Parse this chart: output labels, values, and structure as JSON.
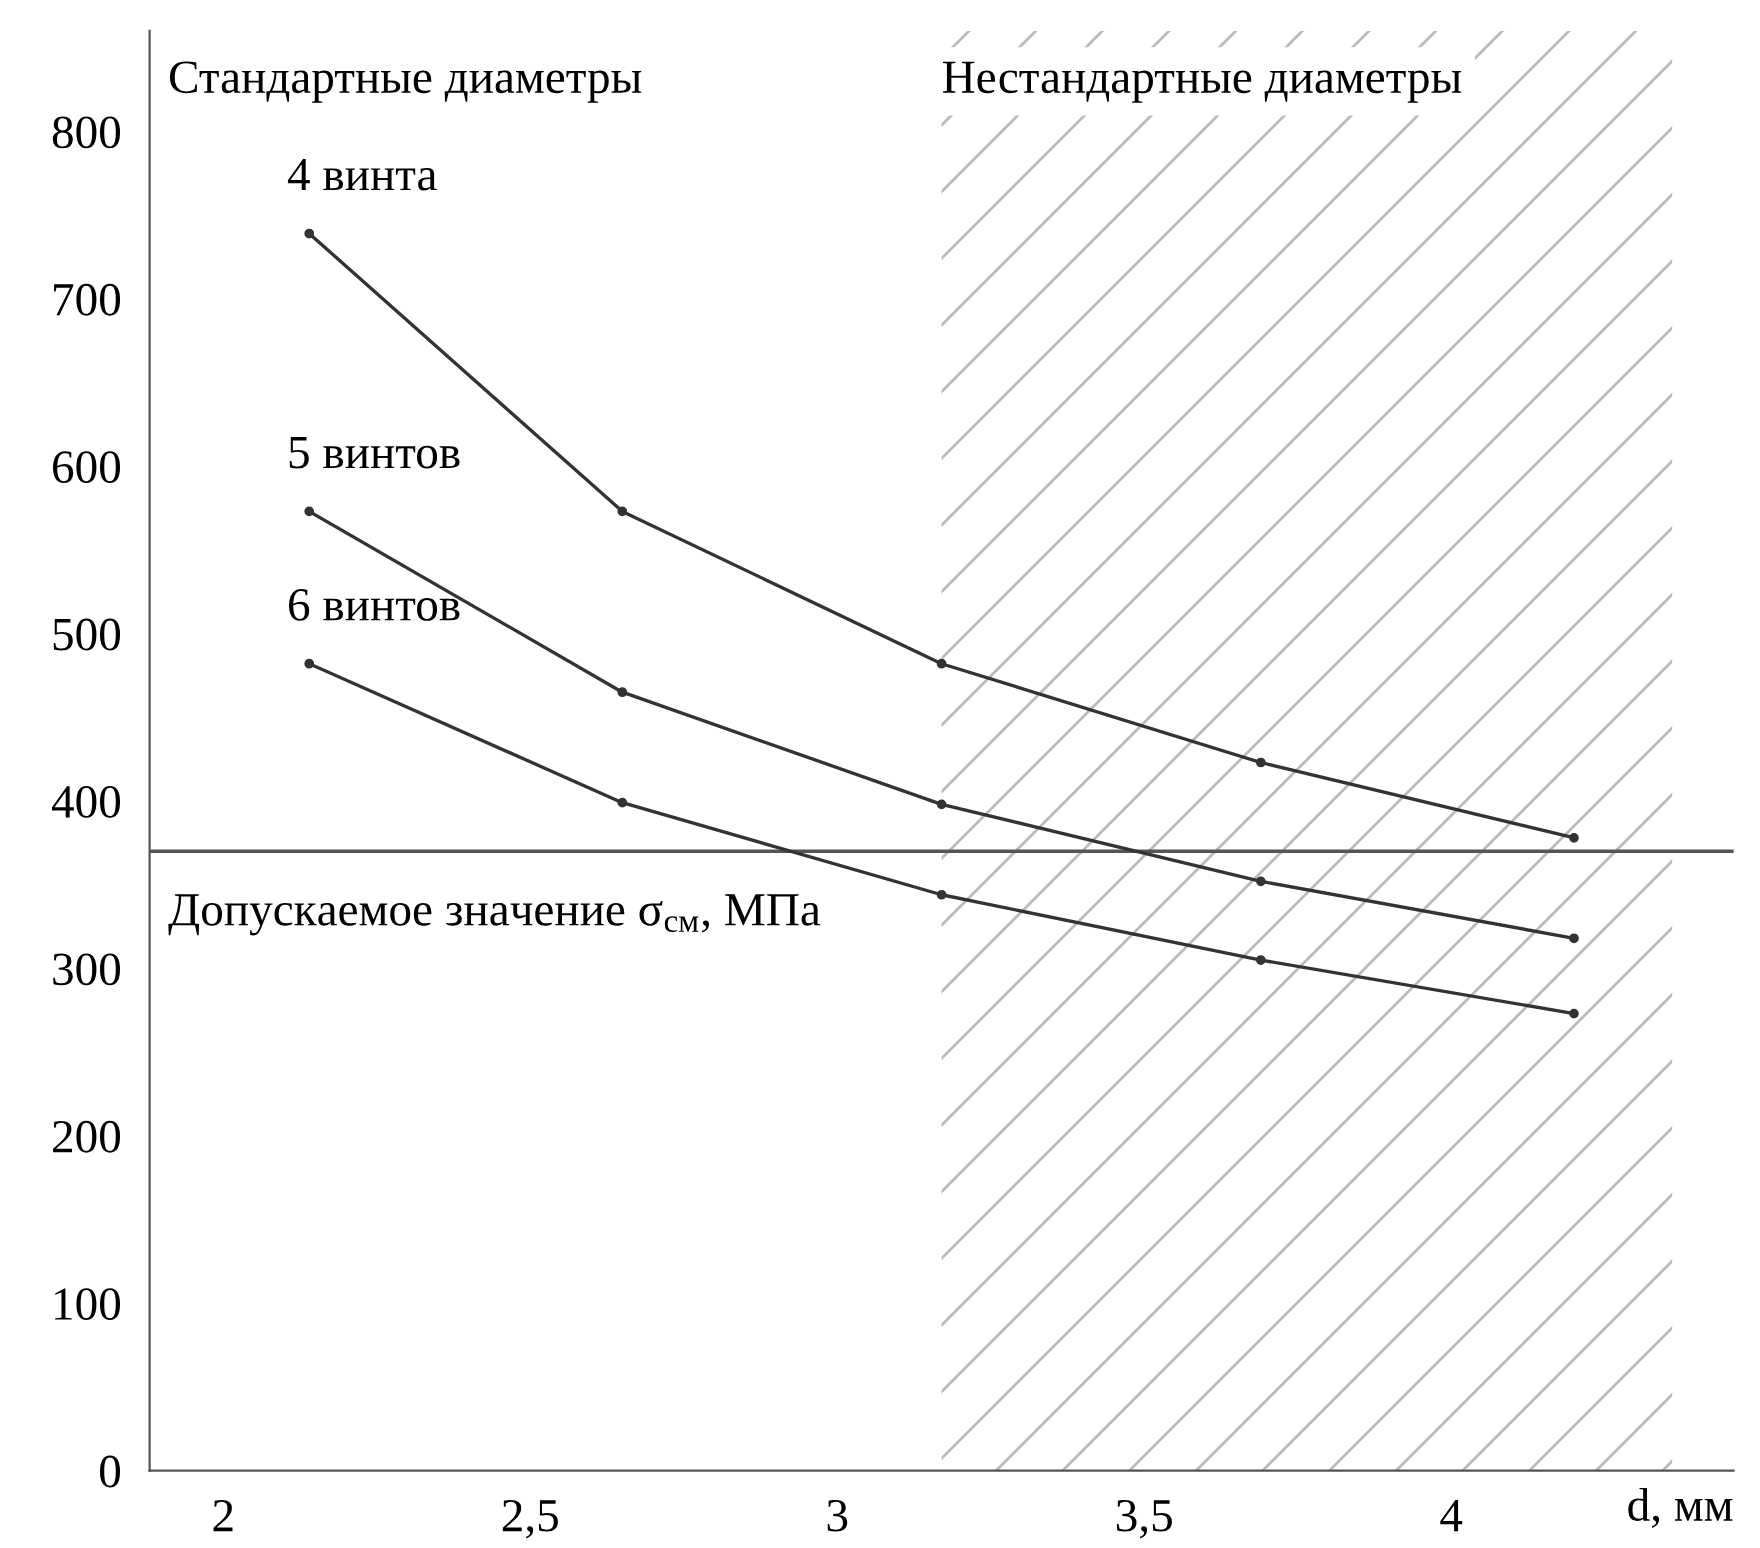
{
  "chart_data": {
    "type": "line",
    "x": [
      2.14,
      2.65,
      3.17,
      3.69,
      4.2
    ],
    "series": [
      {
        "name": "4 винта",
        "color": "#333333",
        "values": [
          739,
          573,
          482,
          423,
          378
        ]
      },
      {
        "name": "5 винтов",
        "color": "#333333",
        "values": [
          573,
          465,
          398,
          352,
          318
        ]
      },
      {
        "name": "6 винтов",
        "color": "#333333",
        "values": [
          482,
          399,
          344,
          305,
          273
        ]
      }
    ],
    "xlabel": "d, мм",
    "xlim": [
      1.88,
      4.46
    ],
    "xticks": [
      2,
      {
        "value": 2.5,
        "label": "2,5"
      },
      3,
      {
        "value": 3.5,
        "label": "3,5"
      },
      4
    ],
    "ylim": [
      0,
      860
    ],
    "yticks": [
      0,
      100,
      200,
      300,
      400,
      500,
      600,
      700,
      800
    ],
    "ref_lines": [
      {
        "axis": "y",
        "value": 370,
        "label": "Допускаемое значение σ$_{см}$, МПа",
        "color": "#555555"
      }
    ],
    "bands": [
      {
        "axis": "x",
        "from": 3.17,
        "to": 4.36,
        "label": "Нестандартные диаметры",
        "color": "#bbbbbb"
      }
    ],
    "annotations": [
      "Стандартные диаметры"
    ],
    "marker": "circle",
    "line_style": "solid",
    "grid": false,
    "legend": false
  }
}
